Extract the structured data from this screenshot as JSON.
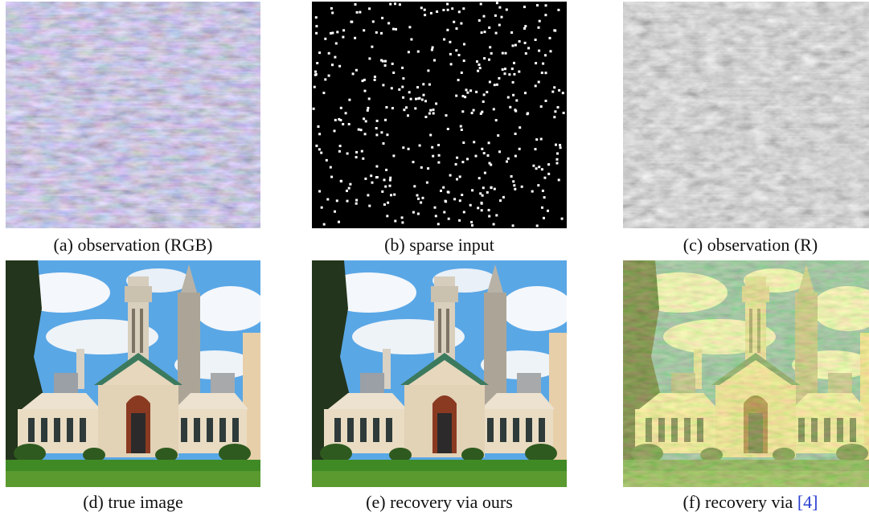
{
  "panels": [
    {
      "label": "(a)",
      "text": "observation (RGB)"
    },
    {
      "label": "(b)",
      "text": "sparse input"
    },
    {
      "label": "(c)",
      "text": "observation (R)"
    },
    {
      "label": "(d)",
      "text": "true image"
    },
    {
      "label": "(e)",
      "text": "recovery via ours"
    },
    {
      "label": "(f)",
      "text": "recovery via",
      "ref": "[4]"
    }
  ],
  "colors": {
    "citation": "#2a3fd0",
    "sky": "#5aa7e6",
    "grass": "#3f8a25",
    "building": "#e6d7bd",
    "roof": "#3c7a5e"
  }
}
